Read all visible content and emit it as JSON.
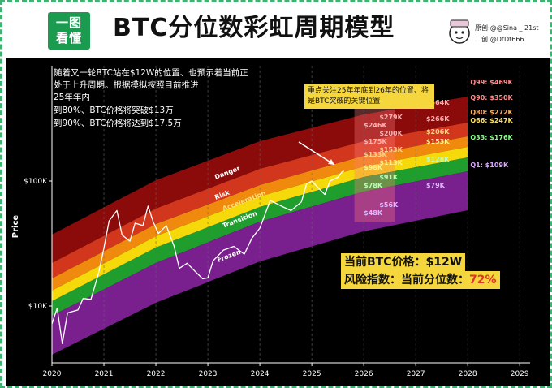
{
  "header": {
    "logo_top": "一图",
    "logo_bottom": "看懂",
    "title": "BTC分位数彩虹周期模型",
    "credit_origin": "原创:@@Sina _ 21st",
    "credit_secondary": "二创:@DtDt666"
  },
  "notes": {
    "lines": [
      "随着又一轮BTC站在$12W的位置、也预示着当前正",
      "处于上升周期。根据模拟按照目前推进",
      "25年年内",
      "到80%、BTC价格将突破$13万",
      "到90%、BTC价格将达到$17.5万"
    ],
    "callout": "重点关注25年年底到26年的位置、将是BTC突破的关键位置",
    "price_label": "当前BTC价格：$12W",
    "risk_label": "风险指数：当前分位数：",
    "risk_value": "72%"
  },
  "colors": {
    "background": "#000000",
    "danger": "#8b0a0a",
    "risk": "#d2361c",
    "acceleration": "#f08a0e",
    "yellow": "#f5d90a",
    "transition": "#1f9e2e",
    "frozen": "#7a1f8e",
    "highlight": "#f5d63d",
    "frame": "#3cb371"
  },
  "chart_data": {
    "type": "area",
    "ylabel": "Price",
    "y_scale": "log",
    "y_ticks": [
      "$10K",
      "$100K"
    ],
    "x_ticks": [
      "2020",
      "2021",
      "2022",
      "2023",
      "2024",
      "2025",
      "2026",
      "2027",
      "2028",
      "2029"
    ],
    "x_range": [
      2020.0,
      2029.2
    ],
    "bands": [
      {
        "name": "Danger",
        "label": "Danger"
      },
      {
        "name": "Risk",
        "label": "Risk"
      },
      {
        "name": "Acceleration",
        "label": "Acceleration"
      },
      {
        "name": "Yellow",
        "label": ""
      },
      {
        "name": "Transition",
        "label": "Transition"
      },
      {
        "name": "Frozen",
        "label": "Frozen"
      }
    ],
    "quantile_labels": [
      {
        "name": "Q99",
        "value": "$469K",
        "text": "Q99: $469K"
      },
      {
        "name": "Q90",
        "value": "$350K",
        "text": "Q90: $350K"
      },
      {
        "name": "Q80",
        "value": "$272K",
        "text": "Q80: $272K"
      },
      {
        "name": "Q66",
        "value": "$247K",
        "text": "Q66: $247K"
      },
      {
        "name": "Q33",
        "value": "$176K",
        "text": "Q33: $176K"
      },
      {
        "name": "Q1",
        "value": "$109K",
        "text": "Q1: $109K"
      }
    ],
    "band_value_labels": [
      {
        "year": 2026,
        "values": [
          "$246K",
          "$175K",
          "$133K",
          "$98K",
          "$78K",
          "$48K"
        ]
      },
      {
        "year": 2026.3,
        "values": [
          "$279K",
          "$200K",
          "$153K",
          "$113K",
          "$91K",
          "$56K"
        ]
      },
      {
        "year": 2027.2,
        "values": [
          "$364K",
          "$266K",
          "$206K",
          "$153K",
          "$128K",
          "$79K"
        ]
      }
    ],
    "price_series": {
      "name": "BTC",
      "points": [
        [
          2020.0,
          7.2
        ],
        [
          2020.1,
          9.6
        ],
        [
          2020.2,
          5.0
        ],
        [
          2020.3,
          8.8
        ],
        [
          2020.5,
          9.3
        ],
        [
          2020.6,
          11.5
        ],
        [
          2020.75,
          11.3
        ],
        [
          2020.9,
          18.5
        ],
        [
          2021.0,
          29.0
        ],
        [
          2021.1,
          48.0
        ],
        [
          2021.25,
          58.0
        ],
        [
          2021.35,
          37.0
        ],
        [
          2021.5,
          33.0
        ],
        [
          2021.6,
          46.0
        ],
        [
          2021.75,
          44.0
        ],
        [
          2021.85,
          63.0
        ],
        [
          2021.95,
          47.0
        ],
        [
          2022.05,
          38.0
        ],
        [
          2022.2,
          44.0
        ],
        [
          2022.35,
          30.0
        ],
        [
          2022.45,
          20.0
        ],
        [
          2022.6,
          22.0
        ],
        [
          2022.75,
          19.0
        ],
        [
          2022.9,
          16.5
        ],
        [
          2023.0,
          16.8
        ],
        [
          2023.1,
          23.0
        ],
        [
          2023.3,
          28.0
        ],
        [
          2023.5,
          30.0
        ],
        [
          2023.7,
          26.0
        ],
        [
          2023.85,
          35.0
        ],
        [
          2024.0,
          42.0
        ],
        [
          2024.2,
          70.0
        ],
        [
          2024.45,
          62.0
        ],
        [
          2024.6,
          58.0
        ],
        [
          2024.8,
          68.0
        ],
        [
          2024.9,
          95.0
        ],
        [
          2025.0,
          100.0
        ],
        [
          2025.15,
          86.0
        ],
        [
          2025.25,
          78.0
        ],
        [
          2025.35,
          100.0
        ],
        [
          2025.5,
          107.0
        ],
        [
          2025.58,
          118.0
        ],
        [
          2025.62,
          120.0
        ]
      ]
    }
  }
}
